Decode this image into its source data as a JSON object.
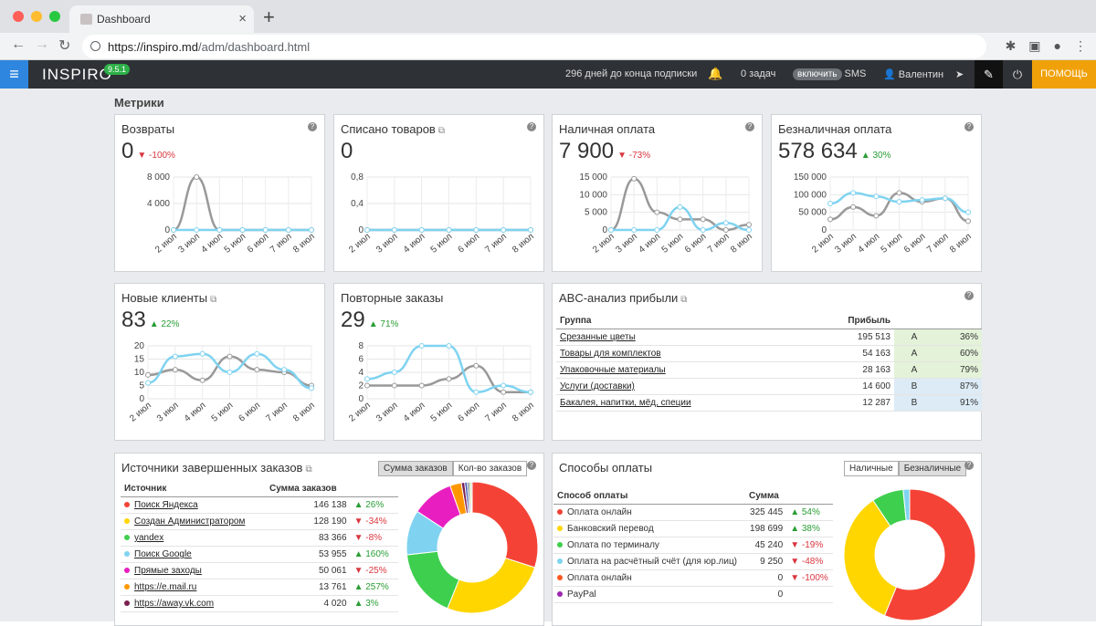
{
  "browser": {
    "tab_title": "Dashboard",
    "url_host": "https://inspiro.md",
    "url_path": "/adm/dashboard.html"
  },
  "appbar": {
    "logo": "INSPIRO",
    "version": "9.5.1",
    "subscription": "296 дней до конца подписки",
    "tasks": "0 задач",
    "sms_toggle": "включить",
    "sms": "SMS",
    "user": "Валентин",
    "help": "ПОМОЩЬ"
  },
  "section_title": "Метрики",
  "metrics": [
    {
      "title": "Возвраты",
      "value": "0",
      "delta": "-100%",
      "dir": "down",
      "ext": false
    },
    {
      "title": "Списано товаров",
      "value": "0",
      "delta": "",
      "dir": "",
      "ext": true
    },
    {
      "title": "Наличная оплата",
      "value": "7 900",
      "delta": "-73%",
      "dir": "down",
      "ext": false
    },
    {
      "title": "Безналичная оплата",
      "value": "578 634",
      "delta": "30%",
      "dir": "up",
      "ext": false
    },
    {
      "title": "Новые клиенты",
      "value": "83",
      "delta": "22%",
      "dir": "up",
      "ext": true
    },
    {
      "title": "Повторные заказы",
      "value": "29",
      "delta": "71%",
      "dir": "up",
      "ext": false
    }
  ],
  "chart_data": [
    {
      "type": "line",
      "title": "Возвраты",
      "x": [
        "2 июл",
        "3 июл",
        "4 июл",
        "5 июл",
        "6 июл",
        "7 июл",
        "8 июл"
      ],
      "yticks": [
        "8 000",
        "4 000",
        "0"
      ],
      "ylim": [
        0,
        8000
      ],
      "series": [
        {
          "color": "#999999",
          "values": [
            0,
            8000,
            0,
            0,
            0,
            0,
            0
          ]
        },
        {
          "color": "#7fd3f0",
          "values": [
            0,
            0,
            0,
            0,
            0,
            0,
            0
          ]
        }
      ]
    },
    {
      "type": "line",
      "title": "Списано товаров",
      "x": [
        "2 июл",
        "3 июл",
        "4 июл",
        "5 июл",
        "6 июл",
        "7 июл",
        "8 июл"
      ],
      "yticks": [
        "0,8",
        "0,4",
        "0"
      ],
      "ylim": [
        0,
        0.8
      ],
      "series": [
        {
          "color": "#999999",
          "values": [
            0,
            0,
            0,
            0,
            0,
            0,
            0
          ]
        },
        {
          "color": "#7fd3f0",
          "values": [
            0,
            0,
            0,
            0,
            0,
            0,
            0
          ]
        }
      ]
    },
    {
      "type": "line",
      "title": "Наличная оплата",
      "x": [
        "2 июл",
        "3 июл",
        "4 июл",
        "5 июл",
        "6 июл",
        "7 июл",
        "8 июл"
      ],
      "yticks": [
        "15 000",
        "10 000",
        "5 000",
        "0"
      ],
      "ylim": [
        0,
        15000
      ],
      "series": [
        {
          "color": "#999999",
          "values": [
            0,
            14500,
            5000,
            3000,
            3000,
            0,
            1500
          ]
        },
        {
          "color": "#7fd3f0",
          "values": [
            0,
            0,
            0,
            6500,
            0,
            2000,
            0
          ]
        }
      ]
    },
    {
      "type": "line",
      "title": "Безналичная оплата",
      "x": [
        "2 июл",
        "3 июл",
        "4 июл",
        "5 июл",
        "6 июл",
        "7 июл",
        "8 июл"
      ],
      "yticks": [
        "150 000",
        "100 000",
        "50 000",
        "0"
      ],
      "ylim": [
        0,
        150000
      ],
      "series": [
        {
          "color": "#999999",
          "values": [
            30000,
            65000,
            40000,
            105000,
            80000,
            90000,
            25000
          ]
        },
        {
          "color": "#7fd3f0",
          "values": [
            75000,
            105000,
            95000,
            80000,
            85000,
            90000,
            50000
          ]
        }
      ]
    },
    {
      "type": "line",
      "title": "Новые клиенты",
      "x": [
        "2 июл",
        "3 июл",
        "4 июл",
        "5 июл",
        "6 июл",
        "7 июл",
        "8 июл"
      ],
      "yticks": [
        "20",
        "15",
        "10",
        "5",
        "0"
      ],
      "ylim": [
        0,
        20
      ],
      "series": [
        {
          "color": "#999999",
          "values": [
            9,
            11,
            7,
            16,
            11,
            10,
            5
          ]
        },
        {
          "color": "#7fd3f0",
          "values": [
            6,
            16,
            17,
            10,
            17,
            11,
            4
          ]
        }
      ]
    },
    {
      "type": "line",
      "title": "Повторные заказы",
      "x": [
        "2 июл",
        "3 июл",
        "4 июл",
        "5 июл",
        "6 июл",
        "7 июл",
        "8 июл"
      ],
      "yticks": [
        "8",
        "6",
        "4",
        "2",
        "0"
      ],
      "ylim": [
        0,
        8
      ],
      "series": [
        {
          "color": "#999999",
          "values": [
            2,
            2,
            2,
            3,
            5,
            1,
            1
          ]
        },
        {
          "color": "#7fd3f0",
          "values": [
            3,
            4,
            8,
            8,
            1,
            2,
            1
          ]
        }
      ]
    },
    {
      "type": "pie",
      "title": "Источники завершенных заказов",
      "values": [
        146138,
        128190,
        83366,
        53955,
        50061,
        13761,
        4020,
        3000,
        2500,
        2000,
        1500
      ],
      "colors": [
        "#f44336",
        "#ffd600",
        "#3ecf4e",
        "#7fd3f0",
        "#e91ec0",
        "#ff9800",
        "#7b1f4f",
        "#3f51b5",
        "#607d8b",
        "#8bc34a",
        "#9e9e9e"
      ]
    },
    {
      "type": "pie",
      "title": "Способы оплаты",
      "values": [
        325445,
        198699,
        45240,
        9250,
        0,
        0
      ],
      "colors": [
        "#f44336",
        "#ffd600",
        "#3ecf4e",
        "#7fd3f0",
        "#ff5722",
        "#9c27b0"
      ]
    }
  ],
  "abc": {
    "title": "ABC-анализ прибыли",
    "headers": [
      "Группа",
      "Прибыль"
    ],
    "rows": [
      {
        "name": "Срезанные цветы",
        "profit": "195 513",
        "cls": "A",
        "pct": "36%"
      },
      {
        "name": "Товары для комплектов",
        "profit": "54 163",
        "cls": "A",
        "pct": "60%"
      },
      {
        "name": "Упаковочные материалы",
        "profit": "28 163",
        "cls": "A",
        "pct": "79%"
      },
      {
        "name": "Услуги (доставки)",
        "profit": "14 600",
        "cls": "B",
        "pct": "87%"
      },
      {
        "name": "Бакалея, напитки, мёд, специи",
        "profit": "12 287",
        "cls": "B",
        "pct": "91%"
      }
    ]
  },
  "sources": {
    "title": "Источники завершенных заказов",
    "btn_sum": "Сумма заказов",
    "btn_count": "Кол-во заказов",
    "headers": [
      "Источник",
      "Сумма заказов"
    ],
    "rows": [
      {
        "name": "Поиск Яндекса",
        "sum": "146 138",
        "delta": "26%",
        "dir": "up",
        "color": "#f44336"
      },
      {
        "name": "Создан Администратором",
        "sum": "128 190",
        "delta": "-34%",
        "dir": "down",
        "color": "#ffd600"
      },
      {
        "name": "yandex",
        "sum": "83 366",
        "delta": "-8%",
        "dir": "down",
        "color": "#3ecf4e"
      },
      {
        "name": "Поиск Google",
        "sum": "53 955",
        "delta": "160%",
        "dir": "up",
        "color": "#7fd3f0"
      },
      {
        "name": "Прямые заходы",
        "sum": "50 061",
        "delta": "-25%",
        "dir": "down",
        "color": "#e91ec0"
      },
      {
        "name": "https://e.mail.ru",
        "sum": "13 761",
        "delta": "257%",
        "dir": "up",
        "color": "#ff9800"
      },
      {
        "name": "https://away.vk.com",
        "sum": "4 020",
        "delta": "3%",
        "dir": "up",
        "color": "#7b1f4f"
      }
    ]
  },
  "payments": {
    "title": "Способы оплаты",
    "btn_cash": "Наличные",
    "btn_cashless": "Безналичные",
    "headers": [
      "Способ оплаты",
      "Сумма"
    ],
    "rows": [
      {
        "name": "Оплата онлайн",
        "sum": "325 445",
        "delta": "54%",
        "dir": "up",
        "color": "#f44336"
      },
      {
        "name": "Банковский перевод",
        "sum": "198 699",
        "delta": "38%",
        "dir": "up",
        "color": "#ffd600"
      },
      {
        "name": "Оплата по терминалу",
        "sum": "45 240",
        "delta": "-19%",
        "dir": "down",
        "color": "#3ecf4e"
      },
      {
        "name": "Оплата на расчётный счёт (для юр.лиц)",
        "sum": "9 250",
        "delta": "-48%",
        "dir": "down",
        "color": "#7fd3f0"
      },
      {
        "name": "Оплата онлайн",
        "sum": "0",
        "delta": "-100%",
        "dir": "down",
        "color": "#ff5722"
      },
      {
        "name": "PayPal",
        "sum": "0",
        "delta": "",
        "dir": "",
        "color": "#9c27b0"
      }
    ]
  }
}
